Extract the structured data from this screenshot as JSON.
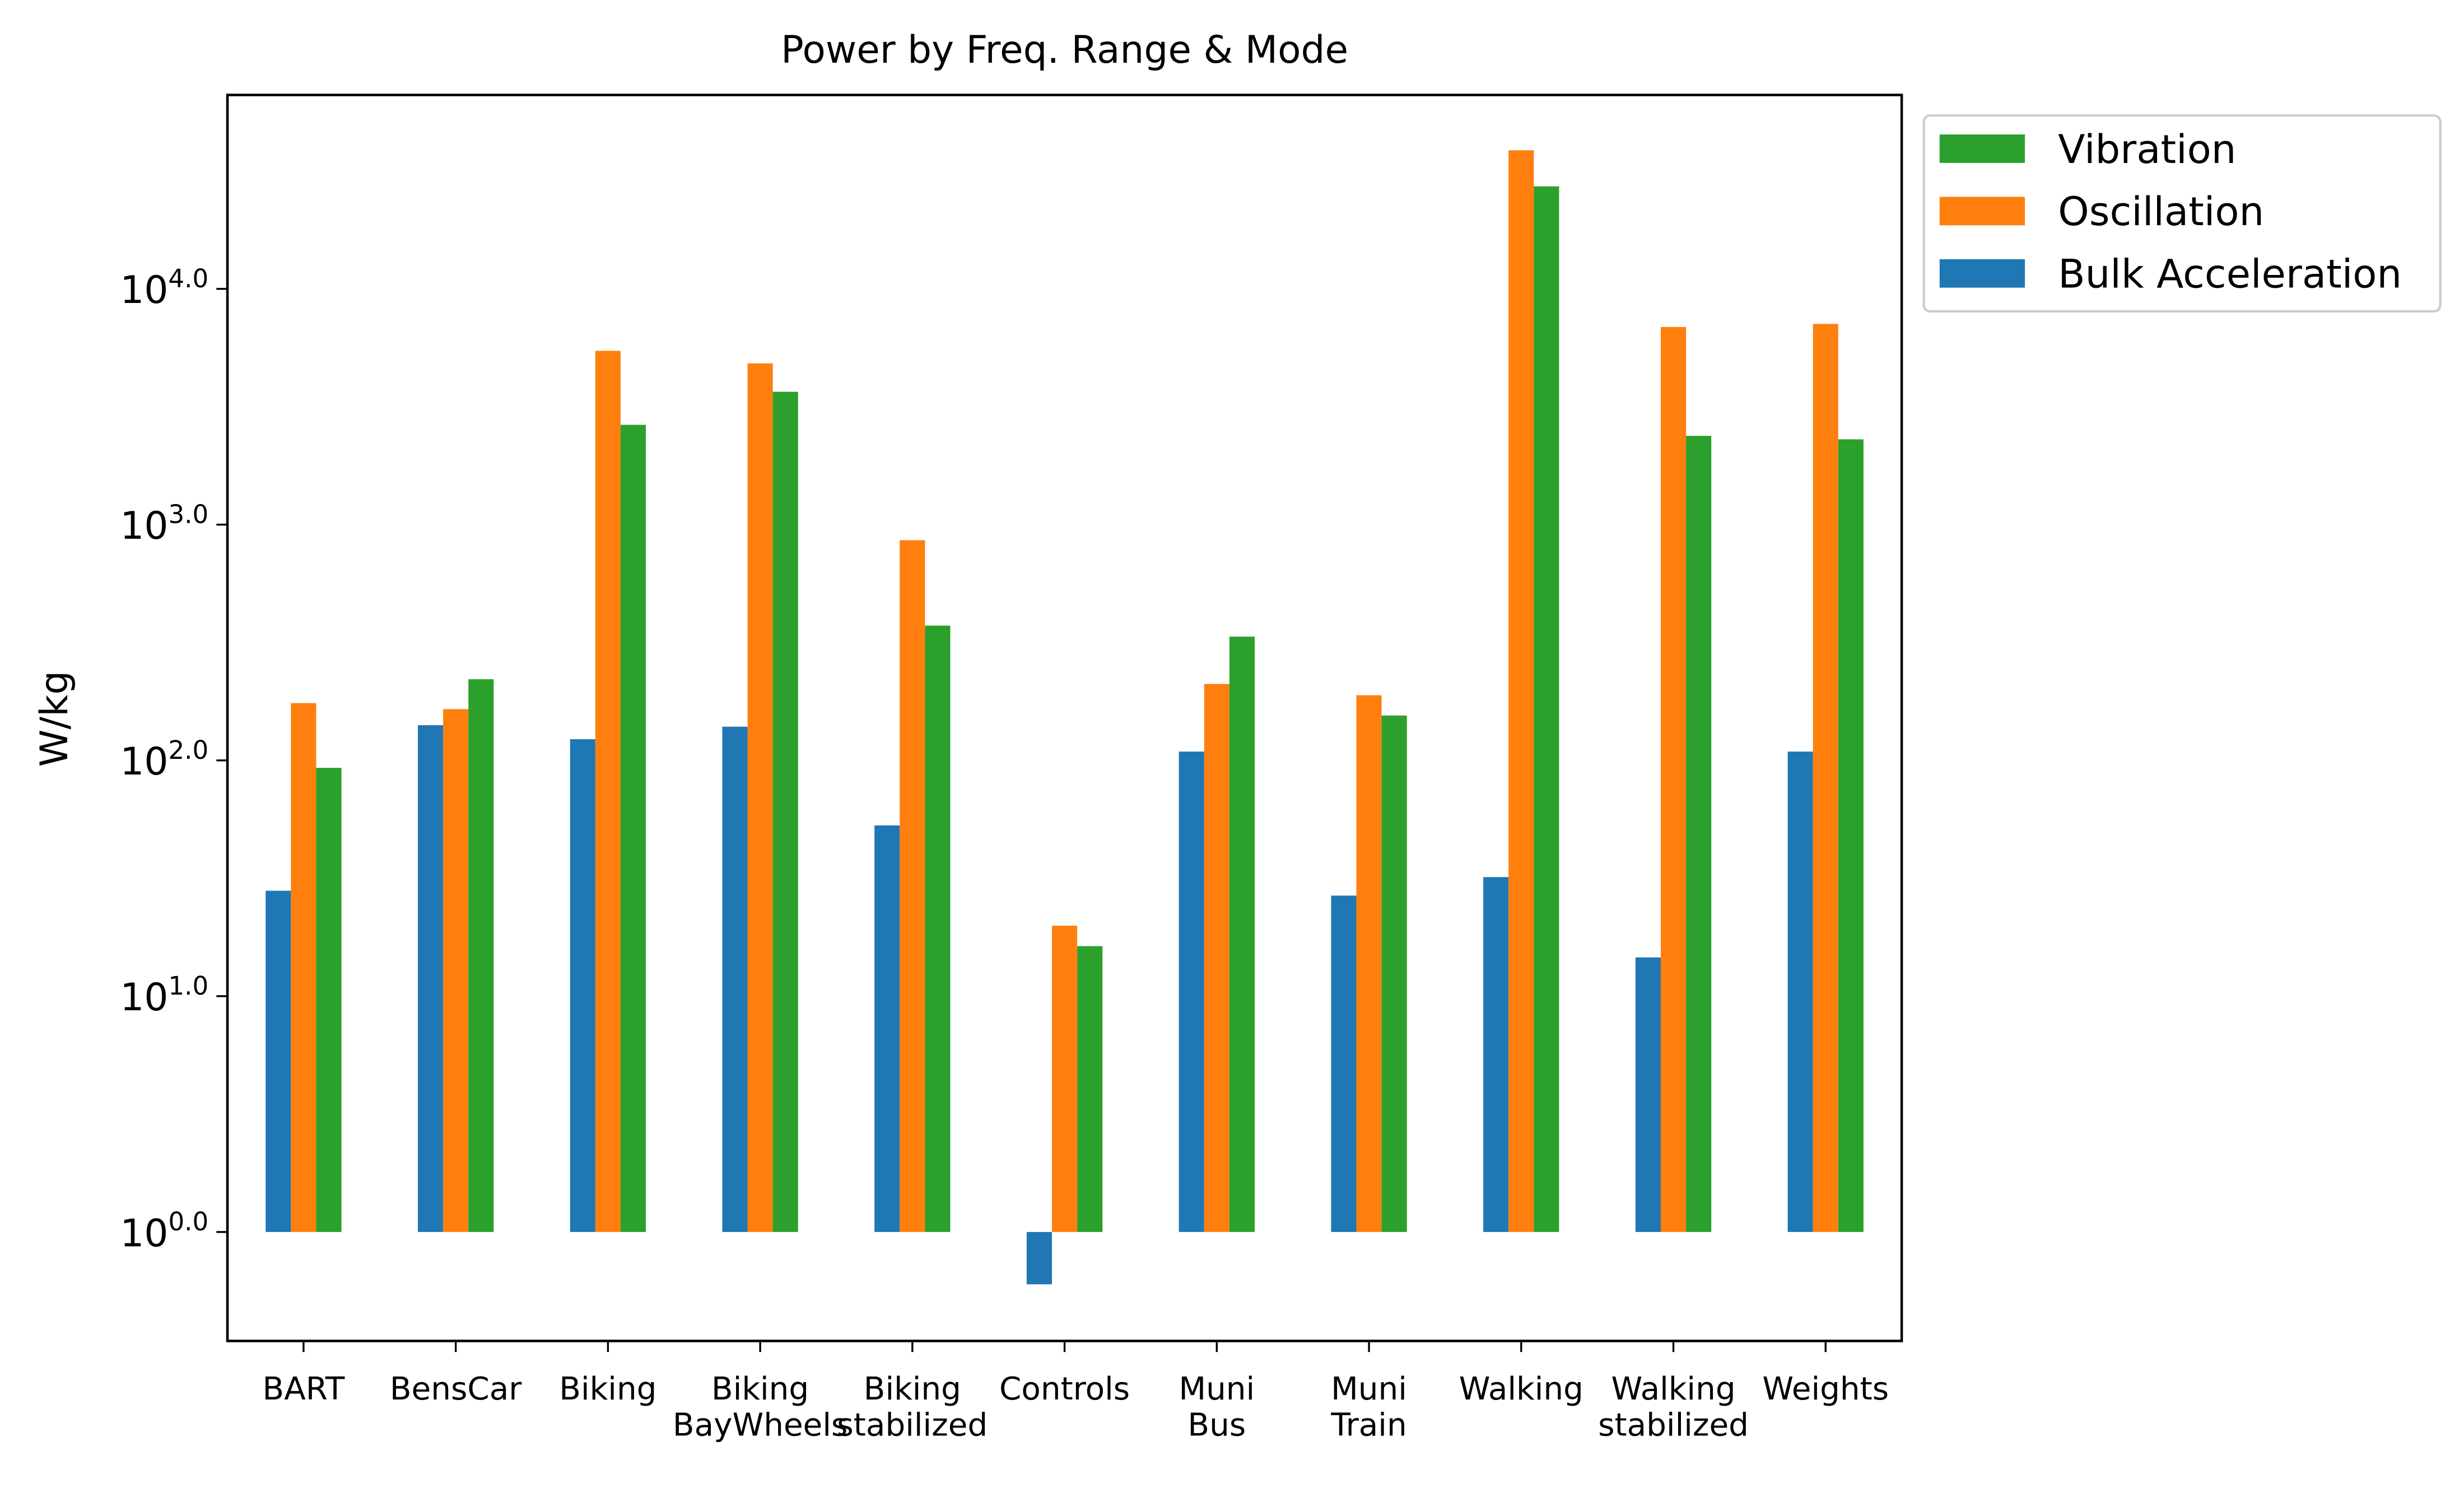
{
  "chart_data": {
    "type": "bar",
    "title": "Power by Freq. Range & Mode",
    "y_label": "W/kg",
    "categories": [
      "BART",
      "BensCar",
      "Biking",
      "Biking\nBayWheels",
      "Biking\nstabilized",
      "Controls",
      "Muni\nBus",
      "Muni\nTrain",
      "Walking",
      "Walking\nstabilized",
      "Weights"
    ],
    "series": [
      {
        "name": "Bulk Acceleration",
        "color": "#1f77b4",
        "values": [
          28,
          141,
          123,
          139,
          53,
          0.6,
          109,
          26.7,
          32,
          14.6,
          109
        ]
      },
      {
        "name": "Oscillation",
        "color": "#ff7f0e",
        "values": [
          175,
          165,
          5460,
          4830,
          859,
          19.9,
          211,
          189,
          38700,
          6890,
          7100
        ]
      },
      {
        "name": "Vibration",
        "color": "#2ca02c",
        "values": [
          93,
          221,
          2650,
          3660,
          373,
          16.3,
          335,
          155,
          27200,
          2380,
          2300
        ]
      }
    ],
    "log_scale": true,
    "bar_base": 1,
    "ylim": [
      0.345,
      66400
    ],
    "yticks": [
      {
        "value": 1,
        "label": "10^0.0"
      },
      {
        "value": 10,
        "label": "10^1.0"
      },
      {
        "value": 100,
        "label": "10^2.0"
      },
      {
        "value": 1000,
        "label": "10^3.0"
      },
      {
        "value": 10000,
        "label": "10^4.0"
      }
    ],
    "legend": "outside upper right",
    "grid": false
  }
}
